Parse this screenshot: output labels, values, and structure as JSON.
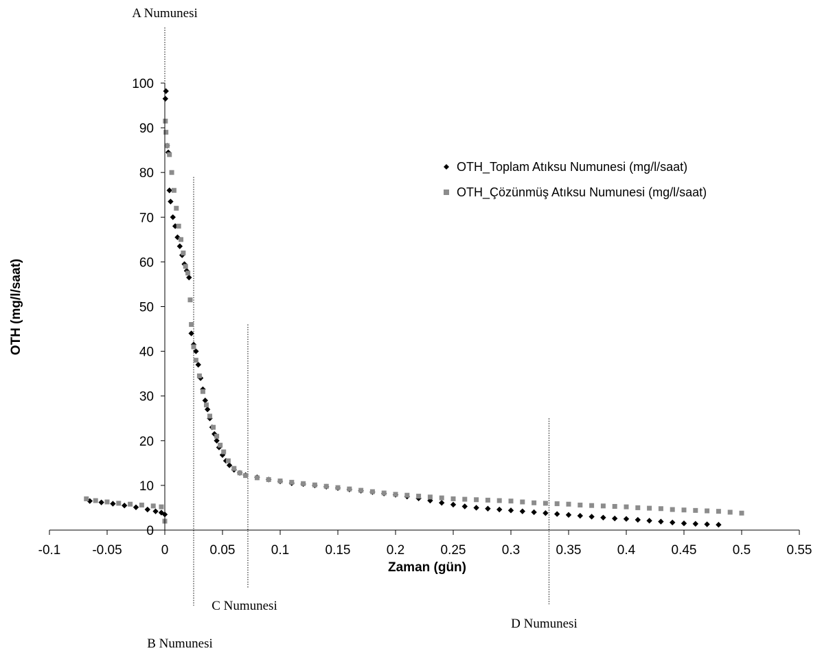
{
  "chart_data": {
    "type": "scatter",
    "title": "",
    "xlabel": "Zaman (gün)",
    "ylabel": "OTH (mg/l/saat)",
    "xlim": [
      -0.1,
      0.55
    ],
    "ylim": [
      0,
      100
    ],
    "x_ticks": [
      "-0.1",
      "-0.05",
      "0",
      "0.05",
      "0.1",
      "0.15",
      "0.2",
      "0.25",
      "0.3",
      "0.35",
      "0.4",
      "0.45",
      "0.5",
      "0.55"
    ],
    "y_ticks": [
      "0",
      "10",
      "20",
      "30",
      "40",
      "50",
      "60",
      "70",
      "80",
      "90",
      "100"
    ],
    "grid": false,
    "legend_position": "upper-right",
    "series": [
      {
        "name": "OTH_Toplam Atıksu Numunesi (mg/l/saat)",
        "marker": "diamond",
        "color": "#000000",
        "points": [
          [
            -0.065,
            6.5
          ],
          [
            -0.055,
            6.2
          ],
          [
            -0.045,
            5.9
          ],
          [
            -0.035,
            5.5
          ],
          [
            -0.025,
            5.1
          ],
          [
            -0.015,
            4.6
          ],
          [
            -0.008,
            4.2
          ],
          [
            -0.003,
            3.9
          ],
          [
            0.0,
            3.5
          ],
          [
            0.0005,
            96.5
          ],
          [
            0.001,
            98.2
          ],
          [
            0.002,
            86.0
          ],
          [
            0.003,
            84.5
          ],
          [
            0.004,
            76.0
          ],
          [
            0.005,
            73.5
          ],
          [
            0.007,
            70.0
          ],
          [
            0.009,
            68.0
          ],
          [
            0.011,
            65.5
          ],
          [
            0.013,
            63.5
          ],
          [
            0.015,
            61.5
          ],
          [
            0.017,
            59.5
          ],
          [
            0.019,
            58.0
          ],
          [
            0.021,
            56.5
          ],
          [
            0.023,
            44.0
          ],
          [
            0.025,
            41.5
          ],
          [
            0.027,
            40.0
          ],
          [
            0.029,
            37.0
          ],
          [
            0.031,
            34.0
          ],
          [
            0.033,
            31.5
          ],
          [
            0.035,
            29.0
          ],
          [
            0.037,
            27.0
          ],
          [
            0.039,
            25.0
          ],
          [
            0.041,
            23.0
          ],
          [
            0.043,
            21.5
          ],
          [
            0.045,
            20.0
          ],
          [
            0.047,
            18.5
          ],
          [
            0.05,
            16.8
          ],
          [
            0.053,
            15.5
          ],
          [
            0.056,
            14.5
          ],
          [
            0.06,
            13.5
          ],
          [
            0.065,
            12.8
          ],
          [
            0.07,
            12.3
          ],
          [
            0.08,
            11.8
          ],
          [
            0.09,
            11.3
          ],
          [
            0.1,
            10.9
          ],
          [
            0.11,
            10.5
          ],
          [
            0.12,
            10.3
          ],
          [
            0.13,
            10.0
          ],
          [
            0.14,
            9.7
          ],
          [
            0.15,
            9.4
          ],
          [
            0.16,
            9.1
          ],
          [
            0.17,
            8.8
          ],
          [
            0.18,
            8.5
          ],
          [
            0.19,
            8.2
          ],
          [
            0.2,
            7.9
          ],
          [
            0.21,
            7.5
          ],
          [
            0.22,
            7.1
          ],
          [
            0.23,
            6.6
          ],
          [
            0.24,
            6.1
          ],
          [
            0.25,
            5.7
          ],
          [
            0.26,
            5.3
          ],
          [
            0.27,
            5.0
          ],
          [
            0.28,
            4.8
          ],
          [
            0.29,
            4.6
          ],
          [
            0.3,
            4.4
          ],
          [
            0.31,
            4.2
          ],
          [
            0.32,
            4.0
          ],
          [
            0.33,
            3.8
          ],
          [
            0.34,
            3.6
          ],
          [
            0.35,
            3.4
          ],
          [
            0.36,
            3.2
          ],
          [
            0.37,
            3.0
          ],
          [
            0.38,
            2.8
          ],
          [
            0.39,
            2.6
          ],
          [
            0.4,
            2.5
          ],
          [
            0.41,
            2.3
          ],
          [
            0.42,
            2.1
          ],
          [
            0.43,
            1.9
          ],
          [
            0.44,
            1.7
          ],
          [
            0.45,
            1.5
          ],
          [
            0.46,
            1.4
          ],
          [
            0.47,
            1.3
          ],
          [
            0.48,
            1.2
          ]
        ]
      },
      {
        "name": "OTH_Çözünmüş Atıksu Numunesi (mg/l/saat)",
        "marker": "square",
        "color": "#8c8c8c",
        "points": [
          [
            -0.068,
            7.0
          ],
          [
            -0.06,
            6.6
          ],
          [
            -0.05,
            6.3
          ],
          [
            -0.04,
            6.0
          ],
          [
            -0.03,
            5.8
          ],
          [
            -0.02,
            5.6
          ],
          [
            -0.01,
            5.4
          ],
          [
            -0.003,
            5.2
          ],
          [
            0.0,
            2.0
          ],
          [
            0.0005,
            91.5
          ],
          [
            0.001,
            89.0
          ],
          [
            0.002,
            86.0
          ],
          [
            0.004,
            84.0
          ],
          [
            0.006,
            80.0
          ],
          [
            0.008,
            76.0
          ],
          [
            0.01,
            72.0
          ],
          [
            0.012,
            68.0
          ],
          [
            0.014,
            65.0
          ],
          [
            0.016,
            62.0
          ],
          [
            0.018,
            59.0
          ],
          [
            0.02,
            57.5
          ],
          [
            0.022,
            51.5
          ],
          [
            0.023,
            46.0
          ],
          [
            0.025,
            41.0
          ],
          [
            0.027,
            38.0
          ],
          [
            0.03,
            34.5
          ],
          [
            0.033,
            31.0
          ],
          [
            0.036,
            28.0
          ],
          [
            0.039,
            25.5
          ],
          [
            0.042,
            23.0
          ],
          [
            0.045,
            21.0
          ],
          [
            0.048,
            19.0
          ],
          [
            0.051,
            17.5
          ],
          [
            0.055,
            15.5
          ],
          [
            0.06,
            13.8
          ],
          [
            0.065,
            12.8
          ],
          [
            0.07,
            12.2
          ],
          [
            0.08,
            11.7
          ],
          [
            0.09,
            11.3
          ],
          [
            0.1,
            11.0
          ],
          [
            0.11,
            10.7
          ],
          [
            0.12,
            10.4
          ],
          [
            0.13,
            10.1
          ],
          [
            0.14,
            9.8
          ],
          [
            0.15,
            9.5
          ],
          [
            0.16,
            9.2
          ],
          [
            0.17,
            8.9
          ],
          [
            0.18,
            8.6
          ],
          [
            0.19,
            8.3
          ],
          [
            0.2,
            8.0
          ],
          [
            0.21,
            7.8
          ],
          [
            0.22,
            7.6
          ],
          [
            0.23,
            7.4
          ],
          [
            0.24,
            7.2
          ],
          [
            0.25,
            7.0
          ],
          [
            0.26,
            6.9
          ],
          [
            0.27,
            6.8
          ],
          [
            0.28,
            6.7
          ],
          [
            0.29,
            6.6
          ],
          [
            0.3,
            6.5
          ],
          [
            0.31,
            6.3
          ],
          [
            0.32,
            6.1
          ],
          [
            0.33,
            6.0
          ],
          [
            0.34,
            5.9
          ],
          [
            0.35,
            5.8
          ],
          [
            0.36,
            5.6
          ],
          [
            0.37,
            5.5
          ],
          [
            0.38,
            5.4
          ],
          [
            0.39,
            5.3
          ],
          [
            0.4,
            5.2
          ],
          [
            0.41,
            5.0
          ],
          [
            0.42,
            4.9
          ],
          [
            0.43,
            4.8
          ],
          [
            0.44,
            4.6
          ],
          [
            0.45,
            4.5
          ],
          [
            0.46,
            4.4
          ],
          [
            0.47,
            4.3
          ],
          [
            0.48,
            4.2
          ],
          [
            0.49,
            4.0
          ],
          [
            0.5,
            3.8
          ]
        ]
      }
    ],
    "annotations": [
      {
        "text": "A Numunesi",
        "x": 0.0,
        "line_y_top": 104,
        "label_position": "above"
      },
      {
        "text": "B Numunesi",
        "x": 0.025,
        "line_y_top": 79,
        "label_position": "below"
      },
      {
        "text": "C Numunesi",
        "x": 0.072,
        "line_y_top": 46,
        "label_position": "below"
      },
      {
        "text": "D Numunesi",
        "x": 0.333,
        "line_y_top": 25,
        "label_position": "below"
      }
    ]
  }
}
